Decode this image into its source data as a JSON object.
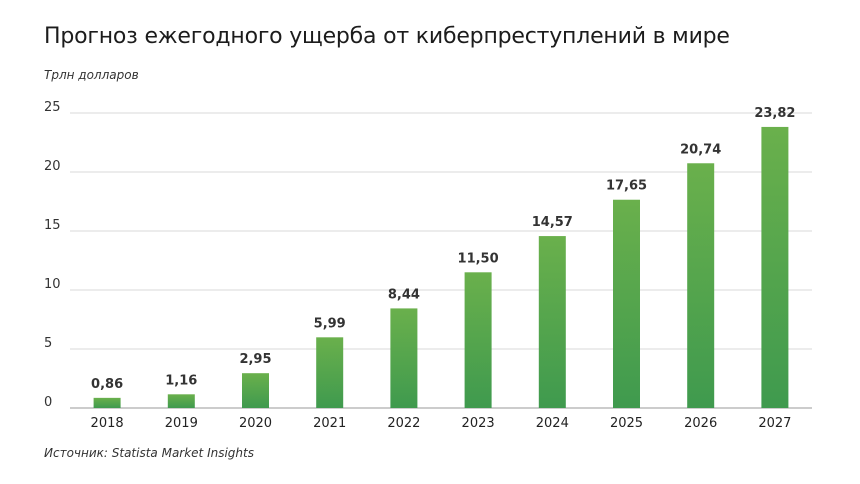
{
  "chart_data": {
    "type": "bar",
    "title": "Прогноз ежегодного ущерба от киберпреступлений в мире",
    "ylabel": "Трлн долларов",
    "xlabel": "",
    "source": "Источник: Statista Market Insights",
    "categories": [
      "2018",
      "2019",
      "2020",
      "2021",
      "2022",
      "2023",
      "2024",
      "2025",
      "2026",
      "2027"
    ],
    "values": [
      0.86,
      1.16,
      2.95,
      5.99,
      8.44,
      11.5,
      14.57,
      17.65,
      20.74,
      23.82
    ],
    "value_labels": [
      "0,86",
      "1,16",
      "2,95",
      "5,99",
      "8,44",
      "11,50",
      "14,57",
      "17,65",
      "20,74",
      "23,82"
    ],
    "yticks": [
      0,
      5,
      10,
      15,
      20,
      25
    ],
    "ylim": [
      0,
      25
    ],
    "grid": true,
    "colors": {
      "bar_top": "#6ab04c",
      "bar_bottom": "#3f9a4e",
      "grid": "#d9d9d9",
      "axis": "#999999"
    }
  }
}
